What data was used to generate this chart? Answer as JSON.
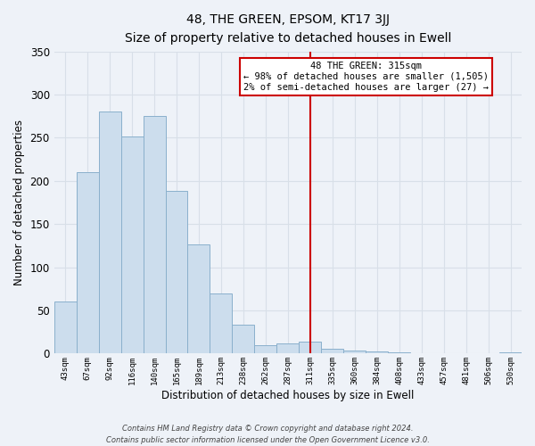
{
  "title": "48, THE GREEN, EPSOM, KT17 3JJ",
  "subtitle": "Size of property relative to detached houses in Ewell",
  "xlabel": "Distribution of detached houses by size in Ewell",
  "ylabel": "Number of detached properties",
  "bar_labels": [
    "43sqm",
    "67sqm",
    "92sqm",
    "116sqm",
    "140sqm",
    "165sqm",
    "189sqm",
    "213sqm",
    "238sqm",
    "262sqm",
    "287sqm",
    "311sqm",
    "335sqm",
    "360sqm",
    "384sqm",
    "408sqm",
    "433sqm",
    "457sqm",
    "481sqm",
    "506sqm",
    "530sqm"
  ],
  "bar_values": [
    60,
    210,
    280,
    252,
    275,
    188,
    126,
    70,
    34,
    10,
    12,
    14,
    6,
    4,
    2,
    1,
    0,
    0,
    0,
    0,
    1
  ],
  "bar_color": "#ccdded",
  "bar_edge_color": "#8ab0cc",
  "vline_x": 11,
  "vline_color": "#cc0000",
  "ylim": [
    0,
    350
  ],
  "yticks": [
    0,
    50,
    100,
    150,
    200,
    250,
    300,
    350
  ],
  "annotation_title": "48 THE GREEN: 315sqm",
  "annotation_line1": "← 98% of detached houses are smaller (1,505)",
  "annotation_line2": "2% of semi-detached houses are larger (27) →",
  "annotation_box_color": "#ffffff",
  "annotation_box_edge": "#cc0000",
  "footer_line1": "Contains HM Land Registry data © Crown copyright and database right 2024.",
  "footer_line2": "Contains public sector information licensed under the Open Government Licence v3.0.",
  "background_color": "#eef2f8",
  "grid_color": "#d8dfe8"
}
